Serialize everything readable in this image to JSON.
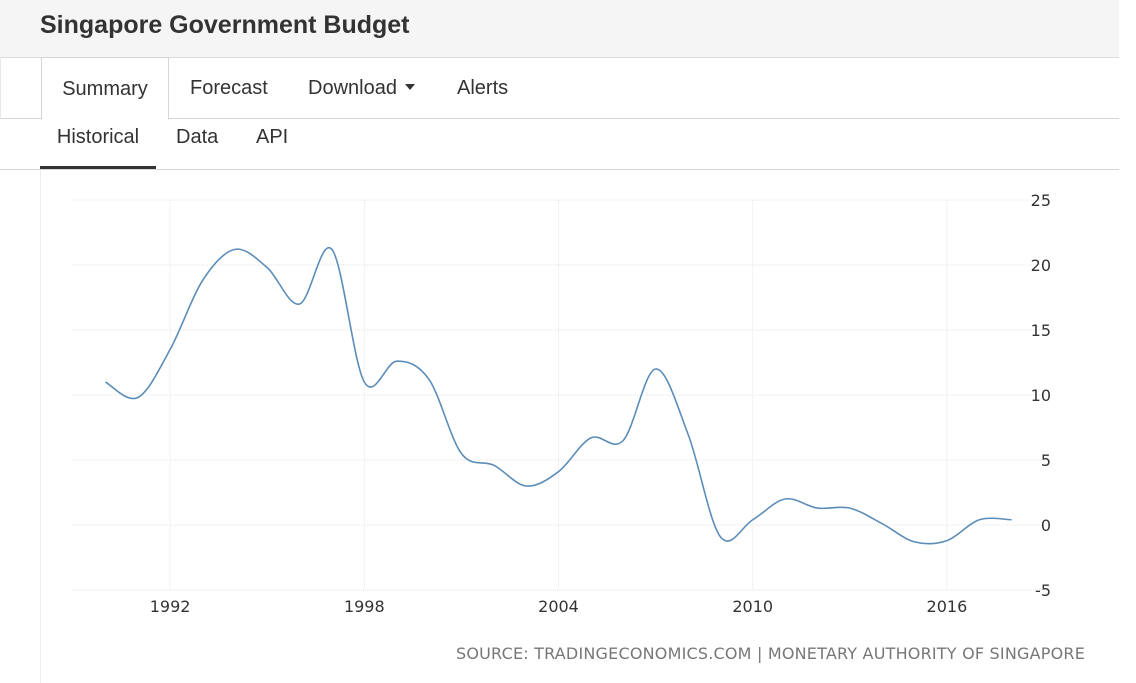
{
  "page": {
    "title": "Singapore Government Budget"
  },
  "tabs": [
    {
      "label": "Summary"
    },
    {
      "label": "Forecast"
    },
    {
      "label": "Download"
    },
    {
      "label": "Alerts"
    }
  ],
  "subtabs": [
    {
      "label": "Historical"
    },
    {
      "label": "Data"
    },
    {
      "label": "API"
    }
  ],
  "source": "SOURCE: TRADINGECONOMICS.COM | MONETARY AUTHORITY OF SINGAPORE",
  "colors": {
    "line": "#5b8db8",
    "grid": "#e6e6e6",
    "text": "#333333"
  },
  "chart_data": {
    "type": "line",
    "title": "",
    "xlabel": "",
    "ylabel": "",
    "xlim": [
      1989,
      2019
    ],
    "ylim": [
      -5,
      25
    ],
    "yticks": [
      -5,
      0,
      5,
      10,
      15,
      20,
      25
    ],
    "xticks": [
      1992,
      1998,
      2004,
      2010,
      2016
    ],
    "grid": true,
    "series": [
      {
        "name": "Singapore Government Budget",
        "x": [
          1990,
          1991,
          1992,
          1993,
          1994,
          1995,
          1996,
          1997,
          1998,
          1999,
          2000,
          2001,
          2002,
          2003,
          2004,
          2005,
          2006,
          2007,
          2008,
          2009,
          2010,
          2011,
          2012,
          2013,
          2014,
          2015,
          2016,
          2017,
          2018
        ],
        "values": [
          11.0,
          9.8,
          13.5,
          18.8,
          21.2,
          19.8,
          17.0,
          21.2,
          11.0,
          12.6,
          11.2,
          5.5,
          4.6,
          3.0,
          4.1,
          6.7,
          6.5,
          12.0,
          7.0,
          -0.9,
          0.4,
          2.0,
          1.3,
          1.3,
          0.1,
          -1.3,
          -1.2,
          0.4,
          0.4
        ]
      }
    ]
  }
}
